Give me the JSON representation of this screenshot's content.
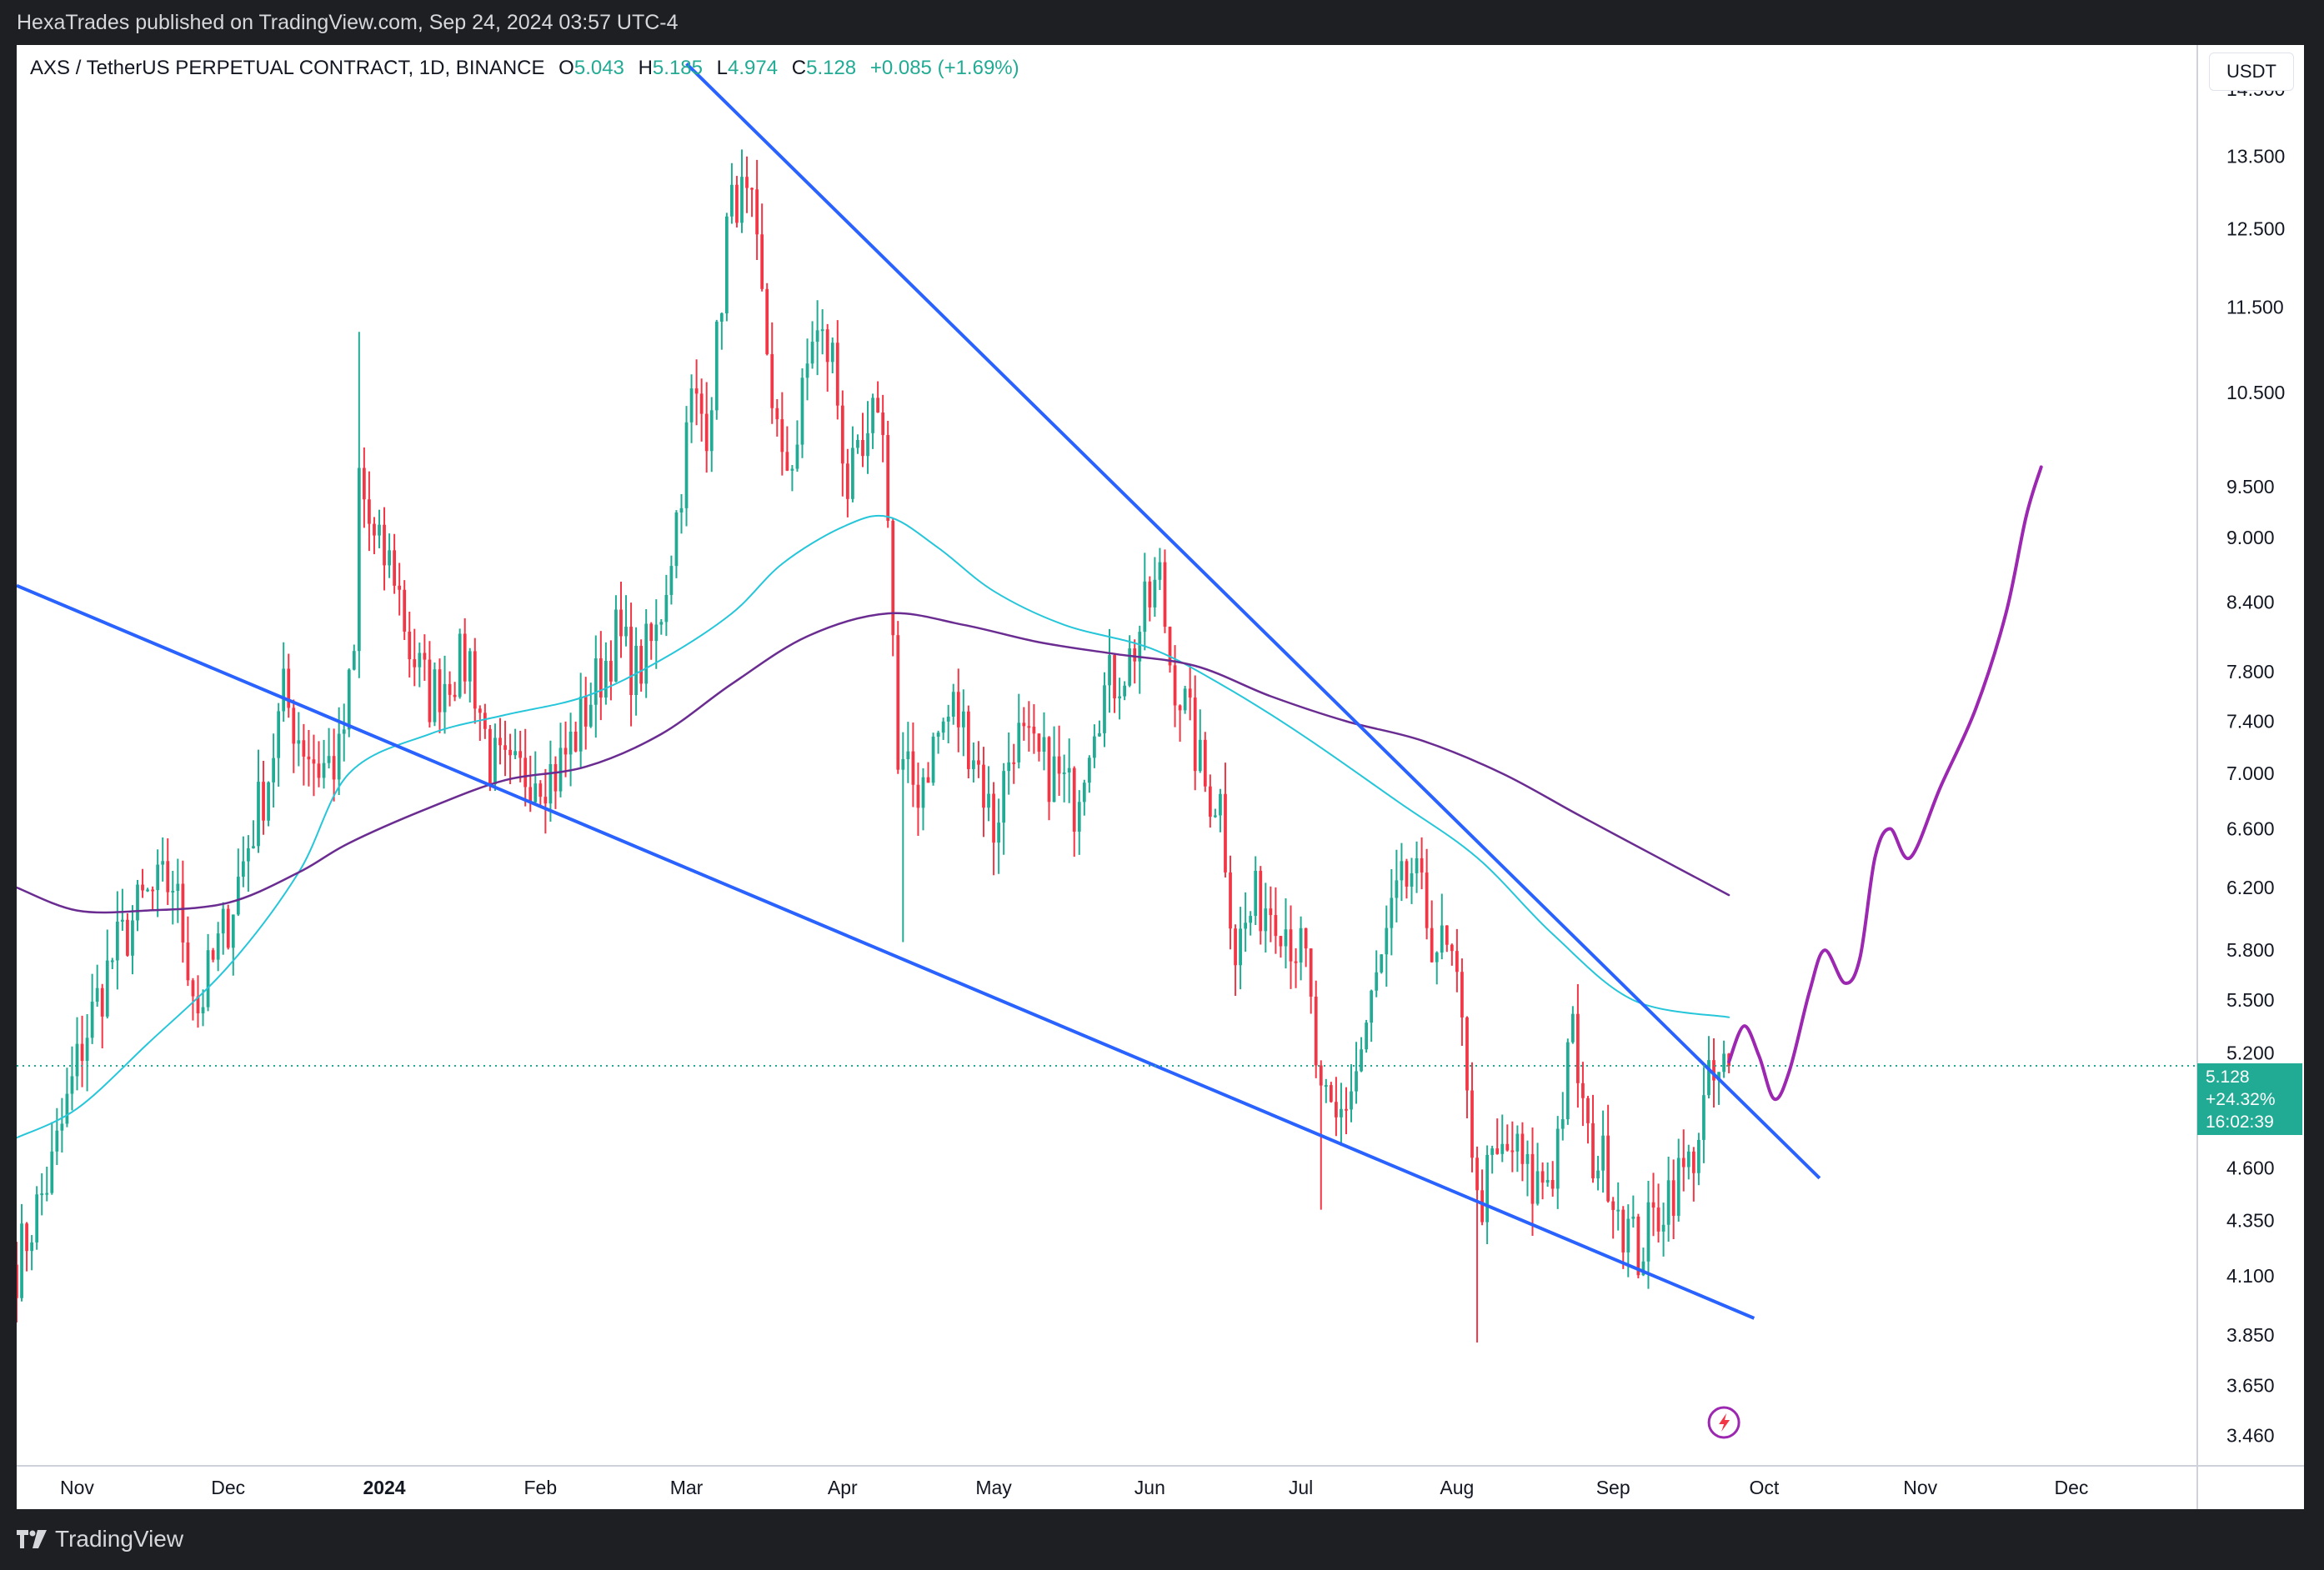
{
  "header": {
    "publisher": "HexaTrades published on TradingView.com, Sep 24, 2024 03:57 UTC-4"
  },
  "footer": {
    "brand": "TradingView"
  },
  "legend": {
    "symbol": "AXS / TetherUS PERPETUAL CONTRACT, 1D, BINANCE",
    "o_label": "O",
    "o": "5.043",
    "h_label": "H",
    "h": "5.185",
    "l_label": "L",
    "l": "4.974",
    "c_label": "C",
    "c": "5.128",
    "change": "+0.085 (+1.69%)"
  },
  "currency_button": "USDT",
  "price_box": {
    "price": "5.128",
    "pct": "+24.32%",
    "countdown": "16:02:39"
  },
  "colors": {
    "up": "#22ab94",
    "down": "#f23645",
    "trend": "#2962ff",
    "ma_fast": "#26c6da",
    "ma_slow": "#6a2c91",
    "projection": "#9c27b0"
  },
  "chart_data": {
    "type": "candlestick",
    "y_scale": "log",
    "ylim": [
      3.35,
      15.2
    ],
    "y_ticks": [
      "14.500",
      "13.500",
      "12.500",
      "11.500",
      "10.500",
      "9.500",
      "9.000",
      "8.400",
      "7.800",
      "7.400",
      "7.000",
      "6.600",
      "6.200",
      "5.800",
      "5.500",
      "5.200",
      "4.600",
      "4.350",
      "4.100",
      "3.850",
      "3.650",
      "3.460"
    ],
    "x_range": [
      "2023-10-20",
      "2024-12-26"
    ],
    "x_ticks": [
      {
        "date": "2023-11-01",
        "label": "Nov",
        "bold": false
      },
      {
        "date": "2023-12-01",
        "label": "Dec",
        "bold": false
      },
      {
        "date": "2024-01-01",
        "label": "2024",
        "bold": true
      },
      {
        "date": "2024-02-01",
        "label": "Feb",
        "bold": false
      },
      {
        "date": "2024-03-01",
        "label": "Mar",
        "bold": false
      },
      {
        "date": "2024-04-01",
        "label": "Apr",
        "bold": false
      },
      {
        "date": "2024-05-01",
        "label": "May",
        "bold": false
      },
      {
        "date": "2024-06-01",
        "label": "Jun",
        "bold": false
      },
      {
        "date": "2024-07-01",
        "label": "Jul",
        "bold": false
      },
      {
        "date": "2024-08-01",
        "label": "Aug",
        "bold": false
      },
      {
        "date": "2024-09-01",
        "label": "Sep",
        "bold": false
      },
      {
        "date": "2024-10-01",
        "label": "Oct",
        "bold": false
      },
      {
        "date": "2024-11-01",
        "label": "Nov",
        "bold": false
      },
      {
        "date": "2024-12-01",
        "label": "Dec",
        "bold": false
      }
    ],
    "anchors": [
      [
        "2023-10-20",
        4.15
      ],
      [
        "2023-10-27",
        4.6
      ],
      [
        "2023-11-02",
        5.25
      ],
      [
        "2023-11-08",
        5.75
      ],
      [
        "2023-11-14",
        6.1
      ],
      [
        "2023-11-20",
        6.25
      ],
      [
        "2023-11-25",
        5.45
      ],
      [
        "2023-12-01",
        6.0
      ],
      [
        "2023-12-05",
        6.5
      ],
      [
        "2023-12-09",
        7.0
      ],
      [
        "2023-12-12",
        7.6
      ],
      [
        "2023-12-15",
        7.3
      ],
      [
        "2023-12-19",
        7.05
      ],
      [
        "2023-12-23",
        7.1
      ],
      [
        "2023-12-26",
        7.9
      ],
      [
        "2023-12-27",
        9.6
      ],
      [
        "2023-12-30",
        8.9
      ],
      [
        "2024-01-03",
        8.7
      ],
      [
        "2024-01-06",
        8.0
      ],
      [
        "2024-01-10",
        7.6
      ],
      [
        "2024-01-14",
        7.8
      ],
      [
        "2024-01-18",
        7.9
      ],
      [
        "2024-01-22",
        7.1
      ],
      [
        "2024-01-26",
        6.95
      ],
      [
        "2024-01-31",
        7.05
      ],
      [
        "2024-02-04",
        7.0
      ],
      [
        "2024-02-08",
        7.3
      ],
      [
        "2024-02-12",
        7.7
      ],
      [
        "2024-02-16",
        8.1
      ],
      [
        "2024-02-20",
        7.8
      ],
      [
        "2024-02-24",
        8.1
      ],
      [
        "2024-02-28",
        9.2
      ],
      [
        "2024-03-02",
        10.4
      ],
      [
        "2024-03-05",
        10.2
      ],
      [
        "2024-03-07",
        11.0
      ],
      [
        "2024-03-09",
        12.5
      ],
      [
        "2024-03-11",
        13.0
      ],
      [
        "2024-03-14",
        12.6
      ],
      [
        "2024-03-17",
        11.0
      ],
      [
        "2024-03-20",
        9.6
      ],
      [
        "2024-03-23",
        10.0
      ],
      [
        "2024-03-26",
        11.2
      ],
      [
        "2024-03-30",
        10.9
      ],
      [
        "2024-04-02",
        9.5
      ],
      [
        "2024-04-06",
        9.8
      ],
      [
        "2024-04-08",
        10.5
      ],
      [
        "2024-04-10",
        9.4
      ],
      [
        "2024-04-12",
        7.0
      ],
      [
        "2024-04-16",
        6.9
      ],
      [
        "2024-04-20",
        7.3
      ],
      [
        "2024-04-23",
        7.5
      ],
      [
        "2024-04-27",
        7.2
      ],
      [
        "2024-05-01",
        6.6
      ],
      [
        "2024-05-05",
        7.3
      ],
      [
        "2024-05-09",
        7.1
      ],
      [
        "2024-05-13",
        7.0
      ],
      [
        "2024-05-17",
        6.8
      ],
      [
        "2024-05-21",
        7.5
      ],
      [
        "2024-05-24",
        7.7
      ],
      [
        "2024-05-28",
        7.9
      ],
      [
        "2024-05-31",
        8.3
      ],
      [
        "2024-06-03",
        8.6
      ],
      [
        "2024-06-05",
        7.9
      ],
      [
        "2024-06-08",
        7.5
      ],
      [
        "2024-06-12",
        6.9
      ],
      [
        "2024-06-15",
        6.8
      ],
      [
        "2024-06-18",
        5.8
      ],
      [
        "2024-06-22",
        6.1
      ],
      [
        "2024-06-26",
        6.1
      ],
      [
        "2024-06-29",
        5.9
      ],
      [
        "2024-07-02",
        5.7
      ],
      [
        "2024-07-05",
        4.9
      ],
      [
        "2024-07-08",
        4.8
      ],
      [
        "2024-07-12",
        5.1
      ],
      [
        "2024-07-16",
        5.6
      ],
      [
        "2024-07-20",
        6.1
      ],
      [
        "2024-07-23",
        6.3
      ],
      [
        "2024-07-27",
        5.9
      ],
      [
        "2024-07-31",
        5.7
      ],
      [
        "2024-08-03",
        5.1
      ],
      [
        "2024-08-05",
        4.4
      ],
      [
        "2024-08-08",
        4.6
      ],
      [
        "2024-08-12",
        4.7
      ],
      [
        "2024-08-16",
        4.5
      ],
      [
        "2024-08-20",
        4.6
      ],
      [
        "2024-08-24",
        5.3
      ],
      [
        "2024-08-27",
        4.7
      ],
      [
        "2024-08-31",
        4.6
      ],
      [
        "2024-09-03",
        4.35
      ],
      [
        "2024-09-06",
        4.2
      ],
      [
        "2024-09-08",
        4.3
      ],
      [
        "2024-09-12",
        4.5
      ],
      [
        "2024-09-16",
        4.6
      ],
      [
        "2024-09-20",
        5.0
      ],
      [
        "2024-09-24",
        5.128
      ]
    ],
    "fast_ma": [
      [
        "2023-10-20",
        4.75
      ],
      [
        "2023-11-01",
        4.9
      ],
      [
        "2023-11-15",
        5.25
      ],
      [
        "2023-12-01",
        5.7
      ],
      [
        "2023-12-15",
        6.3
      ],
      [
        "2023-12-25",
        7.0
      ],
      [
        "2024-01-10",
        7.3
      ],
      [
        "2024-01-25",
        7.45
      ],
      [
        "2024-02-10",
        7.6
      ],
      [
        "2024-02-25",
        7.9
      ],
      [
        "2024-03-10",
        8.3
      ],
      [
        "2024-03-20",
        8.75
      ],
      [
        "2024-04-01",
        9.1
      ],
      [
        "2024-04-10",
        9.2
      ],
      [
        "2024-04-20",
        8.9
      ],
      [
        "2024-05-01",
        8.5
      ],
      [
        "2024-05-15",
        8.2
      ],
      [
        "2024-06-01",
        8.0
      ],
      [
        "2024-06-15",
        7.7
      ],
      [
        "2024-07-01",
        7.3
      ],
      [
        "2024-07-20",
        6.8
      ],
      [
        "2024-08-05",
        6.4
      ],
      [
        "2024-08-20",
        5.9
      ],
      [
        "2024-09-05",
        5.5
      ],
      [
        "2024-09-24",
        5.4
      ]
    ],
    "slow_ma": [
      [
        "2023-10-20",
        6.2
      ],
      [
        "2023-11-01",
        6.05
      ],
      [
        "2023-11-15",
        6.05
      ],
      [
        "2023-12-01",
        6.1
      ],
      [
        "2023-12-15",
        6.3
      ],
      [
        "2023-12-25",
        6.5
      ],
      [
        "2024-01-10",
        6.75
      ],
      [
        "2024-01-25",
        6.95
      ],
      [
        "2024-02-10",
        7.05
      ],
      [
        "2024-02-25",
        7.3
      ],
      [
        "2024-03-10",
        7.7
      ],
      [
        "2024-03-25",
        8.1
      ],
      [
        "2024-04-10",
        8.3
      ],
      [
        "2024-04-25",
        8.2
      ],
      [
        "2024-05-10",
        8.05
      ],
      [
        "2024-05-25",
        7.95
      ],
      [
        "2024-06-10",
        7.85
      ],
      [
        "2024-06-25",
        7.6
      ],
      [
        "2024-07-10",
        7.4
      ],
      [
        "2024-07-25",
        7.25
      ],
      [
        "2024-08-10",
        7.0
      ],
      [
        "2024-08-25",
        6.7
      ],
      [
        "2024-09-10",
        6.4
      ],
      [
        "2024-09-24",
        6.15
      ]
    ],
    "trendlines": [
      {
        "name": "upper",
        "from": [
          "2024-03-01",
          14.9
        ],
        "to": [
          "2024-10-12",
          4.55
        ]
      },
      {
        "name": "lower",
        "from": [
          "2023-10-20",
          8.55
        ],
        "to": [
          "2024-09-29",
          3.92
        ]
      }
    ],
    "projection": [
      [
        "2024-09-24",
        5.15
      ],
      [
        "2024-09-27",
        5.35
      ],
      [
        "2024-09-30",
        5.18
      ],
      [
        "2024-10-03",
        4.95
      ],
      [
        "2024-10-06",
        5.1
      ],
      [
        "2024-10-10",
        5.55
      ],
      [
        "2024-10-13",
        5.8
      ],
      [
        "2024-10-17",
        5.6
      ],
      [
        "2024-10-20",
        5.75
      ],
      [
        "2024-10-23",
        6.4
      ],
      [
        "2024-10-26",
        6.6
      ],
      [
        "2024-10-30",
        6.4
      ],
      [
        "2024-11-05",
        6.9
      ],
      [
        "2024-11-12",
        7.5
      ],
      [
        "2024-11-18",
        8.3
      ],
      [
        "2024-11-22",
        9.2
      ],
      [
        "2024-11-25",
        9.7
      ]
    ],
    "last_price": 5.128
  }
}
